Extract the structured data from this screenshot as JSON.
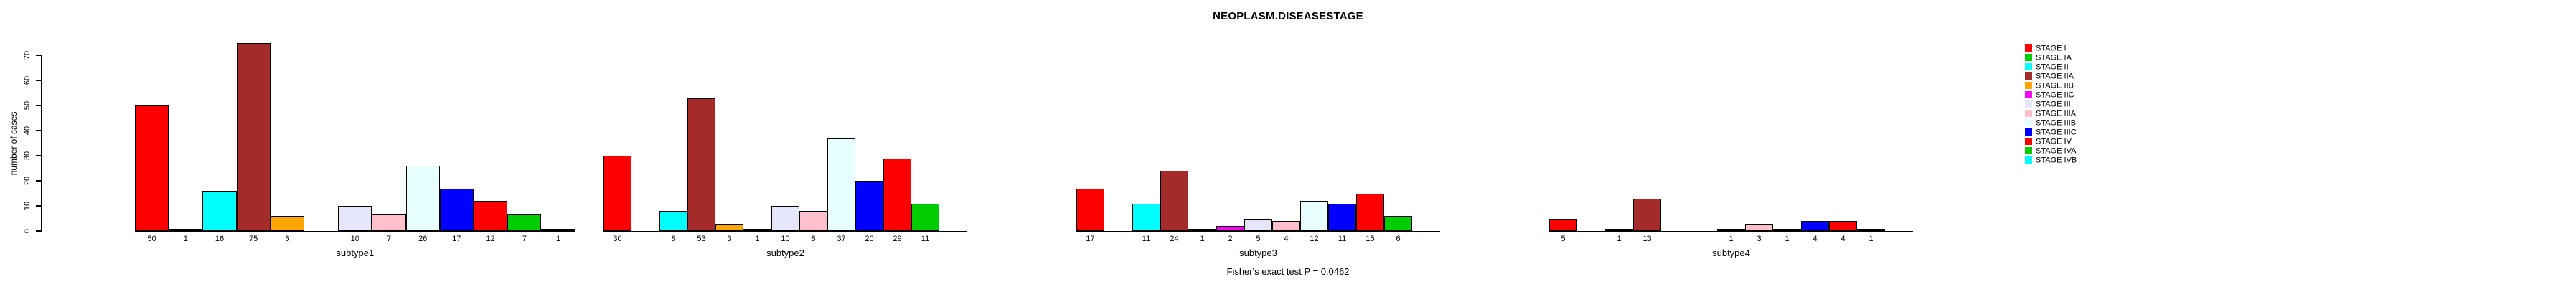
{
  "title": "NEOPLASM.DISEASESTAGE",
  "ylabel": "number of cases",
  "caption": "Fisher's exact test P = 0.0462",
  "chart_data": {
    "type": "bar",
    "title": "NEOPLASM.DISEASESTAGE",
    "ylabel": "number of cases",
    "xlabel": "",
    "ylim": [
      0,
      70
    ],
    "yticks": [
      0,
      10,
      20,
      30,
      40,
      50,
      60,
      70
    ],
    "grid": false,
    "legend_position": "right",
    "bar_value_labels_shown_under_bars": true,
    "zero_value_bars_hidden": true,
    "stages": [
      {
        "label": "STAGE I",
        "color": "#FF0000"
      },
      {
        "label": "STAGE IA",
        "color": "#00CD00"
      },
      {
        "label": "STAGE II",
        "color": "#00FFFF"
      },
      {
        "label": "STAGE IIA",
        "color": "#A52A2A"
      },
      {
        "label": "STAGE IIB",
        "color": "#FFA500"
      },
      {
        "label": "STAGE IIC",
        "color": "#FF00FF"
      },
      {
        "label": "STAGE III",
        "color": "#E6E6FA"
      },
      {
        "label": "STAGE IIIA",
        "color": "#FFC0CB"
      },
      {
        "label": "STAGE IIIB",
        "color": "#E8FFFF"
      },
      {
        "label": "STAGE IIIC",
        "color": "#0000FF"
      },
      {
        "label": "STAGE IV",
        "color": "#FF0000"
      },
      {
        "label": "STAGE IVA",
        "color": "#00CD00"
      },
      {
        "label": "STAGE IVB",
        "color": "#00FFFF"
      }
    ],
    "groups": [
      {
        "label": "subtype1",
        "values": [
          50,
          1,
          16,
          75,
          6,
          0,
          10,
          7,
          26,
          17,
          12,
          7,
          1
        ]
      },
      {
        "label": "subtype2",
        "values": [
          30,
          0,
          8,
          53,
          3,
          1,
          10,
          8,
          37,
          20,
          29,
          11,
          0
        ]
      },
      {
        "label": "subtype3",
        "values": [
          17,
          0,
          11,
          24,
          1,
          2,
          5,
          4,
          12,
          11,
          15,
          6,
          0
        ]
      },
      {
        "label": "subtype4",
        "values": [
          5,
          0,
          1,
          13,
          0,
          0,
          1,
          3,
          1,
          4,
          4,
          1,
          0
        ]
      }
    ]
  }
}
